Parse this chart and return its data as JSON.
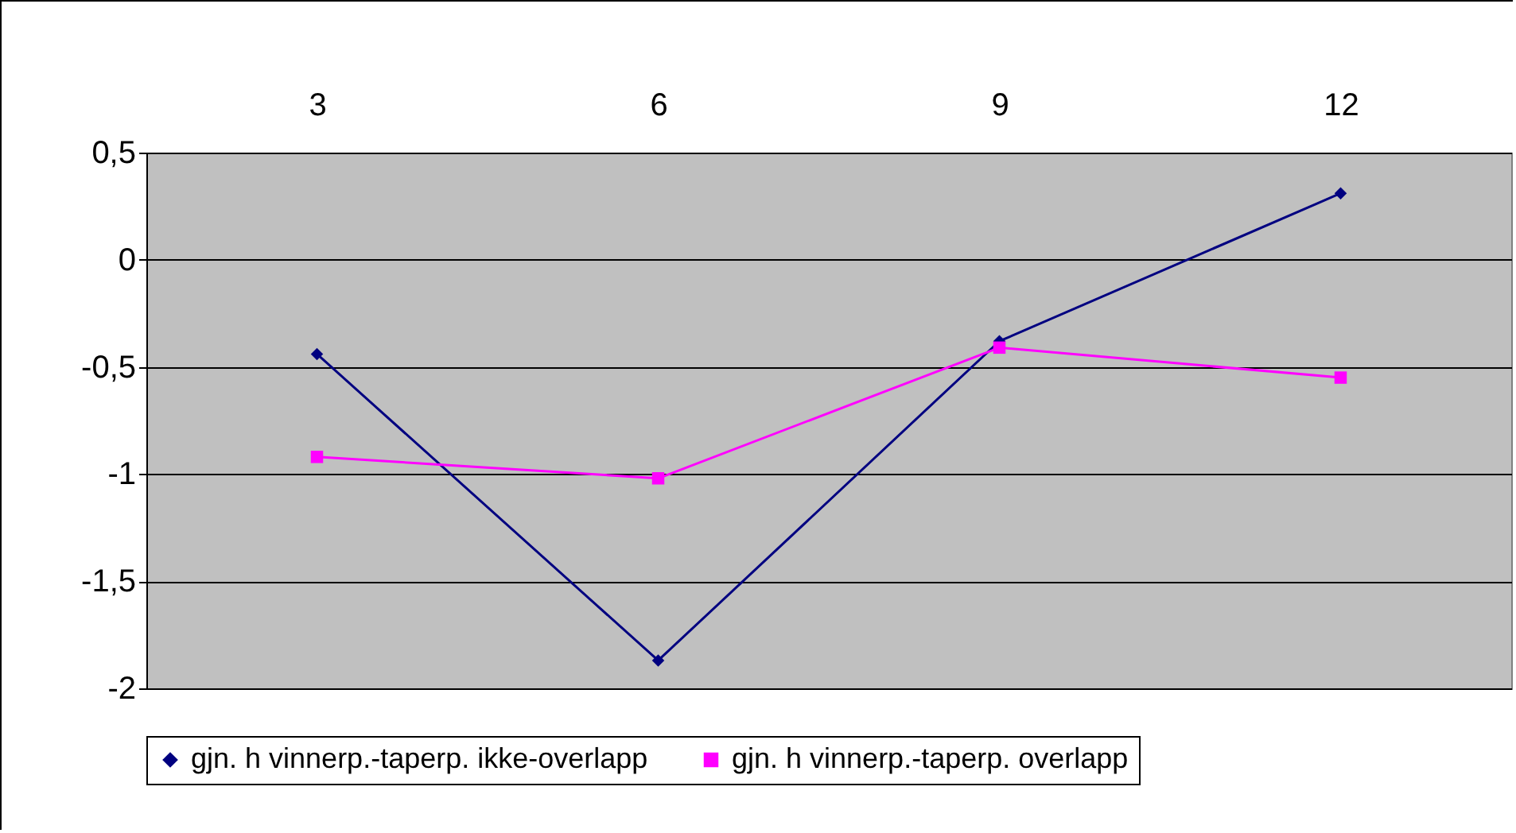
{
  "chart_data": {
    "type": "line",
    "categories": [
      "3",
      "6",
      "9",
      "12"
    ],
    "series": [
      {
        "name": "gjn. h vinnerp.-taperp. ikke-overlapp",
        "color": "#000080",
        "marker": "diamond",
        "values": [
          -0.44,
          -1.87,
          -0.38,
          0.31
        ]
      },
      {
        "name": "gjn. h vinnerp.-taperp. overlapp",
        "color": "#ff00ff",
        "marker": "square",
        "values": [
          -0.92,
          -1.02,
          -0.41,
          -0.55
        ]
      }
    ],
    "ylim": [
      -2,
      0.5
    ],
    "yticks": [
      {
        "value": -2,
        "label": "-2"
      },
      {
        "value": -1.5,
        "label": "-1,5"
      },
      {
        "value": -1,
        "label": "-1"
      },
      {
        "value": -0.5,
        "label": "-0,5"
      },
      {
        "value": 0,
        "label": "0"
      },
      {
        "value": 0.5,
        "label": "0,5"
      }
    ],
    "grid": "y",
    "legend": "bottom"
  }
}
